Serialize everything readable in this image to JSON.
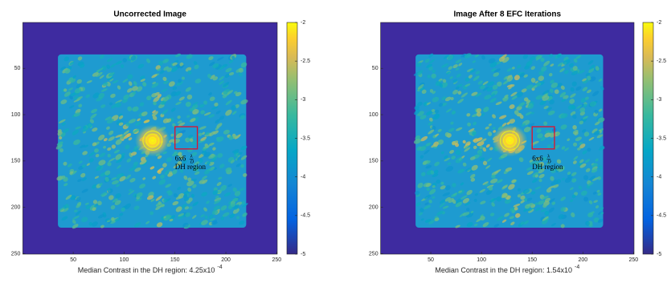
{
  "chart_data": [
    {
      "type": "heatmap",
      "title": "Uncorrected Image",
      "xlabel": "Median Contrast in the DH region: 4.25x10",
      "xlabel_exponent": "-4",
      "xlim": [
        0.5,
        250.5
      ],
      "ylim": [
        0.5,
        250.5
      ],
      "xticks": [
        50,
        100,
        150,
        200,
        250
      ],
      "yticks": [
        50,
        100,
        150,
        200,
        250
      ],
      "clim": [
        -5,
        -2
      ],
      "cticks": [
        -2,
        -2.5,
        -3,
        -3.5,
        -4,
        -4.5,
        -5
      ],
      "annotation": {
        "size": "6x6",
        "numerator": "λ",
        "denominator": "D",
        "text": "DH region"
      }
    },
    {
      "type": "heatmap",
      "title": "Image After 8 EFC Iterations",
      "xlabel": "Median Contrast in the DH region: 1.54x10",
      "xlabel_exponent": "-4",
      "xlim": [
        0.5,
        250.5
      ],
      "ylim": [
        0.5,
        250.5
      ],
      "xticks": [
        50,
        100,
        150,
        200,
        250
      ],
      "yticks": [
        50,
        100,
        150,
        200,
        250
      ],
      "clim": [
        -5,
        -2
      ],
      "cticks": [
        -2,
        -2.5,
        -3,
        -3.5,
        -4,
        -4.5,
        -5
      ],
      "annotation": {
        "size": "6x6",
        "numerator": "λ",
        "denominator": "D",
        "text": "DH region"
      }
    }
  ]
}
